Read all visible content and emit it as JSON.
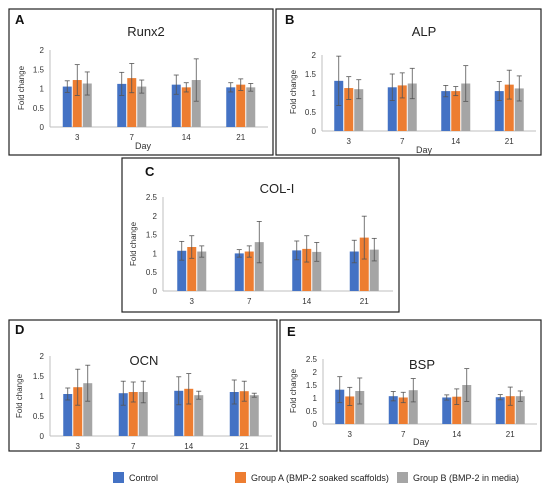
{
  "colors": {
    "control": "#4472c4",
    "group_a": "#ed7d31",
    "group_b": "#a5a5a5",
    "frame": "#222222",
    "axis": "#bfbfbf",
    "errbar": "#555555"
  },
  "legend": [
    {
      "label": "Control",
      "color": "#4472c4"
    },
    {
      "label": "Group A (BMP-2 soaked scaffolds)",
      "color": "#ed7d31"
    },
    {
      "label": "Group B (BMP-2 in media)",
      "color": "#a5a5a5"
    }
  ],
  "chart_data": [
    {
      "panel": "A",
      "title": "Runx2",
      "type": "bar",
      "ylabel": "Fold change",
      "xlabel": "Day",
      "categories": [
        "3",
        "7",
        "14",
        "21"
      ],
      "yticks": [
        "0",
        "0.5",
        "1",
        "1.5",
        "2"
      ],
      "ylim": [
        0,
        2
      ],
      "series": [
        {
          "name": "Control",
          "values": [
            1.05,
            1.12,
            1.1,
            1.03
          ],
          "errors": [
            0.15,
            0.3,
            0.25,
            0.12
          ]
        },
        {
          "name": "Group A (BMP-2 soaked scaffolds)",
          "values": [
            1.22,
            1.27,
            1.03,
            1.1
          ],
          "errors": [
            0.4,
            0.38,
            0.12,
            0.15
          ]
        },
        {
          "name": "Group B (BMP-2 in media)",
          "values": [
            1.13,
            1.05,
            1.22,
            1.03
          ],
          "errors": [
            0.3,
            0.17,
            0.55,
            0.1
          ]
        }
      ]
    },
    {
      "panel": "B",
      "title": "ALP",
      "type": "bar",
      "ylabel": "Fold change",
      "xlabel": "Day",
      "categories": [
        "3",
        "7",
        "14",
        "21"
      ],
      "yticks": [
        "0",
        "0.5",
        "1",
        "1.5",
        "2"
      ],
      "ylim": [
        0,
        2
      ],
      "series": [
        {
          "name": "Control",
          "values": [
            1.32,
            1.15,
            1.05,
            1.05
          ],
          "errors": [
            0.65,
            0.35,
            0.15,
            0.25
          ]
        },
        {
          "name": "Group A (BMP-2 soaked scaffolds)",
          "values": [
            1.13,
            1.2,
            1.05,
            1.22
          ],
          "errors": [
            0.3,
            0.33,
            0.12,
            0.38
          ]
        },
        {
          "name": "Group B (BMP-2 in media)",
          "values": [
            1.1,
            1.25,
            1.25,
            1.12
          ],
          "errors": [
            0.25,
            0.4,
            0.47,
            0.33
          ]
        }
      ]
    },
    {
      "panel": "C",
      "title": "COL-I",
      "type": "bar",
      "ylabel": "Fold change",
      "xlabel": "",
      "categories": [
        "3",
        "7",
        "14",
        "21"
      ],
      "yticks": [
        "0",
        "0.5",
        "1",
        "1.5",
        "2",
        "2.5"
      ],
      "ylim": [
        0,
        2.5
      ],
      "series": [
        {
          "name": "Control",
          "values": [
            1.07,
            1.0,
            1.08,
            1.05
          ],
          "errors": [
            0.25,
            0.1,
            0.25,
            0.3
          ]
        },
        {
          "name": "Group A (BMP-2 soaked scaffolds)",
          "values": [
            1.17,
            1.05,
            1.12,
            1.42
          ],
          "errors": [
            0.3,
            0.15,
            0.35,
            0.57
          ]
        },
        {
          "name": "Group B (BMP-2 in media)",
          "values": [
            1.05,
            1.3,
            1.04,
            1.1
          ],
          "errors": [
            0.15,
            0.55,
            0.25,
            0.3
          ]
        }
      ]
    },
    {
      "panel": "D",
      "title": "OCN",
      "type": "bar",
      "ylabel": "Fold change",
      "xlabel": "",
      "categories": [
        "3",
        "7",
        "14",
        "21"
      ],
      "yticks": [
        "0",
        "0.5",
        "1",
        "1.5",
        "2"
      ],
      "ylim": [
        0,
        2
      ],
      "series": [
        {
          "name": "Control",
          "values": [
            1.05,
            1.07,
            1.13,
            1.1
          ],
          "errors": [
            0.15,
            0.3,
            0.35,
            0.3
          ]
        },
        {
          "name": "Group A (BMP-2 soaked scaffolds)",
          "values": [
            1.22,
            1.1,
            1.18,
            1.12
          ],
          "errors": [
            0.45,
            0.25,
            0.38,
            0.25
          ]
        },
        {
          "name": "Group B (BMP-2 in media)",
          "values": [
            1.32,
            1.1,
            1.02,
            1.02
          ],
          "errors": [
            0.45,
            0.27,
            0.1,
            0.05
          ]
        }
      ]
    },
    {
      "panel": "E",
      "title": "BSP",
      "type": "bar",
      "ylabel": "Fold change",
      "xlabel": "Day",
      "categories": [
        "3",
        "7",
        "14",
        "21"
      ],
      "yticks": [
        "0",
        "0.5",
        "1",
        "1.5",
        "2",
        "2.5"
      ],
      "ylim": [
        0,
        2.5
      ],
      "series": [
        {
          "name": "Control",
          "values": [
            1.32,
            1.07,
            1.02,
            1.03
          ],
          "errors": [
            0.5,
            0.18,
            0.1,
            0.1
          ]
        },
        {
          "name": "Group A (BMP-2 soaked scaffolds)",
          "values": [
            1.06,
            1.02,
            1.05,
            1.07
          ],
          "errors": [
            0.35,
            0.2,
            0.3,
            0.35
          ]
        },
        {
          "name": "Group B (BMP-2 in media)",
          "values": [
            1.27,
            1.3,
            1.5,
            1.07
          ],
          "errors": [
            0.5,
            0.45,
            0.63,
            0.2
          ]
        }
      ]
    }
  ]
}
